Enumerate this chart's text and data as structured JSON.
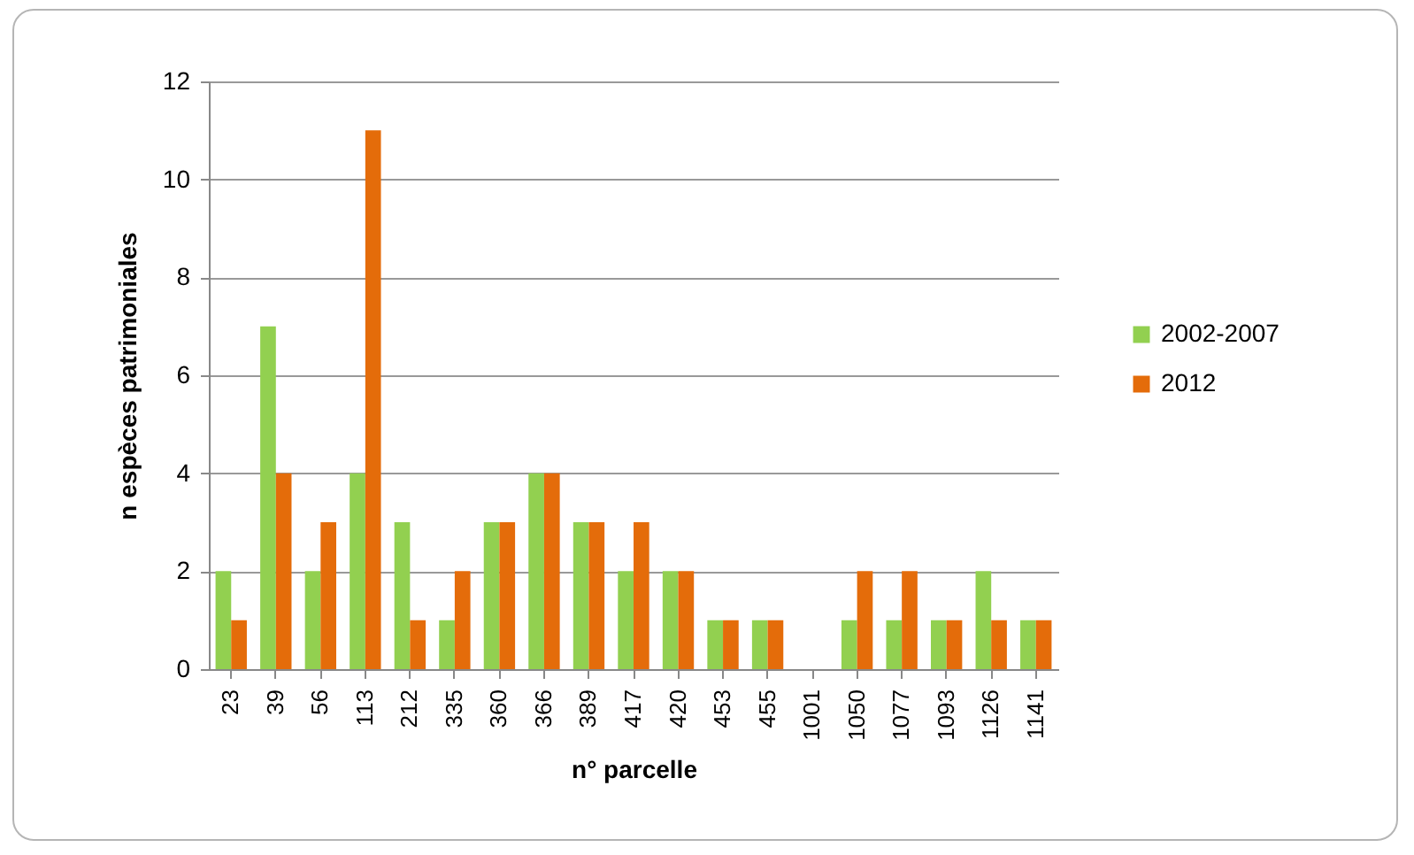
{
  "chart_data": {
    "type": "bar",
    "xlabel": "n° parcelle",
    "ylabel": "n espèces patrimoniales",
    "categories": [
      "23",
      "39",
      "56",
      "113",
      "212",
      "335",
      "360",
      "366",
      "389",
      "417",
      "420",
      "453",
      "455",
      "1001",
      "1050",
      "1077",
      "1093",
      "1126",
      "1141"
    ],
    "series": [
      {
        "name": "2002-2007",
        "color": "#92d050",
        "values": [
          2,
          7,
          2,
          4,
          3,
          1,
          3,
          4,
          3,
          2,
          2,
          1,
          1,
          0,
          1,
          1,
          1,
          2,
          1
        ]
      },
      {
        "name": "2012",
        "color": "#e46c0a",
        "values": [
          1,
          4,
          3,
          11,
          1,
          2,
          3,
          4,
          3,
          3,
          2,
          1,
          1,
          0,
          2,
          2,
          1,
          1,
          1
        ]
      }
    ],
    "ylim": [
      0,
      12
    ],
    "yticks": [
      0,
      2,
      4,
      6,
      8,
      10,
      12
    ],
    "grid": "y",
    "legend": "right"
  }
}
